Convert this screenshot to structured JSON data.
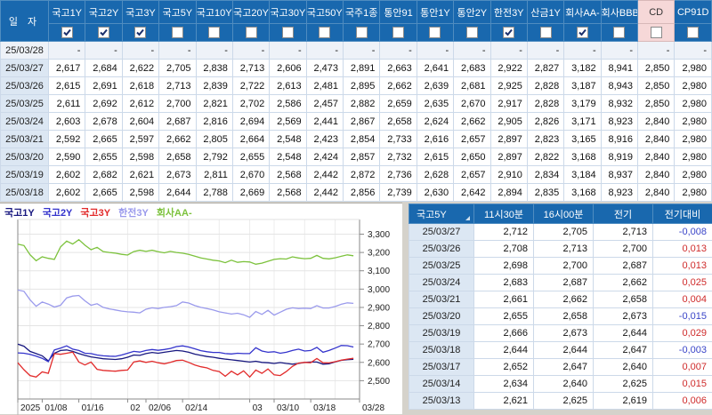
{
  "top_table": {
    "date_header": "일  자",
    "columns": [
      {
        "label": "국고1Y",
        "checked": true
      },
      {
        "label": "국고2Y",
        "checked": true
      },
      {
        "label": "국고3Y",
        "checked": true
      },
      {
        "label": "국고5Y",
        "checked": false
      },
      {
        "label": "국고10Y",
        "checked": false
      },
      {
        "label": "국고20Y",
        "checked": false
      },
      {
        "label": "국고30Y",
        "checked": false
      },
      {
        "label": "국고50Y",
        "checked": false
      },
      {
        "label": "국주1종",
        "checked": false
      },
      {
        "label": "통안91",
        "checked": false
      },
      {
        "label": "통안1Y",
        "checked": false
      },
      {
        "label": "통안2Y",
        "checked": false
      },
      {
        "label": "한전3Y",
        "checked": true
      },
      {
        "label": "산금1Y",
        "checked": false
      },
      {
        "label": "회사AA-",
        "checked": true
      },
      {
        "label": "회사BBB-",
        "checked": false
      },
      {
        "label": "CD",
        "checked": false,
        "highlight": true
      },
      {
        "label": "CP91D",
        "checked": false
      }
    ],
    "rows": [
      {
        "date": "25/03/28",
        "values": [
          "-",
          "-",
          "-",
          "-",
          "-",
          "-",
          "-",
          "-",
          "-",
          "-",
          "-",
          "-",
          "-",
          "-",
          "-",
          "-",
          "-",
          "-"
        ]
      },
      {
        "date": "25/03/27",
        "values": [
          "2,617",
          "2,684",
          "2,622",
          "2,705",
          "2,838",
          "2,713",
          "2,606",
          "2,473",
          "2,891",
          "2,663",
          "2,641",
          "2,683",
          "2,922",
          "2,827",
          "3,182",
          "8,941",
          "2,850",
          "2,980"
        ]
      },
      {
        "date": "25/03/26",
        "values": [
          "2,615",
          "2,691",
          "2,618",
          "2,713",
          "2,839",
          "2,722",
          "2,613",
          "2,481",
          "2,895",
          "2,662",
          "2,639",
          "2,681",
          "2,925",
          "2,828",
          "3,187",
          "8,943",
          "2,850",
          "2,980"
        ]
      },
      {
        "date": "25/03/25",
        "values": [
          "2,611",
          "2,692",
          "2,612",
          "2,700",
          "2,821",
          "2,702",
          "2,586",
          "2,457",
          "2,882",
          "2,659",
          "2,635",
          "2,670",
          "2,917",
          "2,828",
          "3,179",
          "8,932",
          "2,850",
          "2,980"
        ]
      },
      {
        "date": "25/03/24",
        "values": [
          "2,603",
          "2,678",
          "2,604",
          "2,687",
          "2,816",
          "2,694",
          "2,569",
          "2,441",
          "2,867",
          "2,658",
          "2,624",
          "2,662",
          "2,905",
          "2,826",
          "3,171",
          "8,923",
          "2,840",
          "2,980"
        ]
      },
      {
        "date": "25/03/21",
        "values": [
          "2,592",
          "2,665",
          "2,597",
          "2,662",
          "2,805",
          "2,664",
          "2,548",
          "2,423",
          "2,854",
          "2,733",
          "2,616",
          "2,657",
          "2,897",
          "2,823",
          "3,165",
          "8,916",
          "2,840",
          "2,980"
        ]
      },
      {
        "date": "25/03/20",
        "values": [
          "2,590",
          "2,655",
          "2,598",
          "2,658",
          "2,792",
          "2,655",
          "2,548",
          "2,424",
          "2,857",
          "2,732",
          "2,615",
          "2,650",
          "2,897",
          "2,822",
          "3,168",
          "8,919",
          "2,840",
          "2,980"
        ]
      },
      {
        "date": "25/03/19",
        "values": [
          "2,602",
          "2,682",
          "2,621",
          "2,673",
          "2,811",
          "2,670",
          "2,568",
          "2,442",
          "2,872",
          "2,736",
          "2,628",
          "2,657",
          "2,910",
          "2,834",
          "3,184",
          "8,937",
          "2,840",
          "2,980"
        ]
      },
      {
        "date": "25/03/18",
        "values": [
          "2,602",
          "2,665",
          "2,598",
          "2,644",
          "2,788",
          "2,669",
          "2,568",
          "2,442",
          "2,856",
          "2,739",
          "2,630",
          "2,642",
          "2,894",
          "2,835",
          "3,168",
          "8,923",
          "2,840",
          "2,980"
        ]
      }
    ]
  },
  "quote_table": {
    "columns": [
      "국고5Y",
      "11시30분",
      "16시00분",
      "전기",
      "전기대비"
    ],
    "rows": [
      [
        "25/03/27",
        "2,712",
        "2,705",
        "2,713",
        "-0,008"
      ],
      [
        "25/03/26",
        "2,708",
        "2,713",
        "2,700",
        "0,013"
      ],
      [
        "25/03/25",
        "2,698",
        "2,700",
        "2,687",
        "0,013"
      ],
      [
        "25/03/24",
        "2,683",
        "2,687",
        "2,662",
        "0,025"
      ],
      [
        "25/03/21",
        "2,661",
        "2,662",
        "2,658",
        "0,004"
      ],
      [
        "25/03/20",
        "2,655",
        "2,658",
        "2,673",
        "-0,015"
      ],
      [
        "25/03/19",
        "2,666",
        "2,673",
        "2,644",
        "0,029"
      ],
      [
        "25/03/18",
        "2,644",
        "2,644",
        "2,647",
        "-0,003"
      ],
      [
        "25/03/17",
        "2,652",
        "2,647",
        "2,640",
        "0,007"
      ],
      [
        "25/03/14",
        "2,634",
        "2,640",
        "2,625",
        "0,015"
      ],
      [
        "25/03/13",
        "2,621",
        "2,625",
        "2,619",
        "0,006"
      ]
    ],
    "colors": {
      "positive": "#cf2b2b",
      "negative": "#3a45c8"
    }
  },
  "chart": {
    "y_ticks": [
      {
        "v": 2500,
        "label": "2,500"
      },
      {
        "v": 2600,
        "label": "2,600"
      },
      {
        "v": 2700,
        "label": "2,700"
      },
      {
        "v": 2800,
        "label": "2,800"
      },
      {
        "v": 2900,
        "label": "2,900"
      },
      {
        "v": 3000,
        "label": "3,000"
      },
      {
        "v": 3100,
        "label": "3,100"
      },
      {
        "v": 3200,
        "label": "3,200"
      },
      {
        "v": 3300,
        "label": "3,300"
      }
    ],
    "x_ticks": [
      {
        "i": 0,
        "label": "2025"
      },
      {
        "i": 4,
        "label": "01/08"
      },
      {
        "i": 10,
        "label": "01/16"
      },
      {
        "i": 18,
        "label": "02"
      },
      {
        "i": 21,
        "label": "02/06"
      },
      {
        "i": 27,
        "label": "02/14"
      },
      {
        "i": 38,
        "label": "03"
      },
      {
        "i": 42,
        "label": "03/10"
      },
      {
        "i": 48,
        "label": "03/18"
      },
      {
        "i": 56,
        "label": "03/28"
      }
    ],
    "grid_v_indices": [
      2,
      7,
      12,
      18,
      23,
      28,
      33,
      38,
      42,
      47,
      52
    ]
  },
  "chart_data": {
    "type": "line",
    "title": "",
    "ylabel": "",
    "xlabel": "",
    "ylim": [
      2400,
      3380
    ],
    "grid": true,
    "legend_position": "top-left",
    "x": [
      "01/02",
      "01/03",
      "01/06",
      "01/07",
      "01/08",
      "01/09",
      "01/10",
      "01/13",
      "01/14",
      "01/15",
      "01/16",
      "01/17",
      "01/20",
      "01/21",
      "01/22",
      "01/23",
      "01/24",
      "01/31",
      "02/03",
      "02/04",
      "02/05",
      "02/06",
      "02/07",
      "02/10",
      "02/11",
      "02/12",
      "02/13",
      "02/14",
      "02/17",
      "02/18",
      "02/19",
      "02/20",
      "02/21",
      "02/24",
      "02/25",
      "02/26",
      "02/27",
      "02/28",
      "03/04",
      "03/05",
      "03/06",
      "03/07",
      "03/10",
      "03/11",
      "03/12",
      "03/13",
      "03/14",
      "03/17",
      "03/18",
      "03/19",
      "03/20",
      "03/21",
      "03/24",
      "03/25",
      "03/26",
      "03/27"
    ],
    "x_axis_end": "03/28",
    "series": [
      {
        "name": "국고1Y",
        "color": "#17177f",
        "values": [
          2700,
          2688,
          2660,
          2648,
          2636,
          2608,
          2650,
          2665,
          2668,
          2660,
          2648,
          2638,
          2630,
          2625,
          2620,
          2618,
          2616,
          2620,
          2628,
          2640,
          2638,
          2648,
          2654,
          2650,
          2655,
          2660,
          2665,
          2662,
          2655,
          2645,
          2638,
          2632,
          2628,
          2622,
          2618,
          2614,
          2610,
          2606,
          2602,
          2606,
          2600,
          2598,
          2594,
          2599,
          2594,
          2590,
          2594,
          2600,
          2602,
          2602,
          2590,
          2592,
          2603,
          2611,
          2615,
          2617
        ]
      },
      {
        "name": "국고2Y",
        "color": "#3333cc",
        "values": [
          2652,
          2650,
          2644,
          2634,
          2622,
          2604,
          2668,
          2678,
          2690,
          2672,
          2665,
          2650,
          2648,
          2640,
          2636,
          2634,
          2633,
          2640,
          2650,
          2660,
          2656,
          2665,
          2670,
          2666,
          2670,
          2676,
          2686,
          2690,
          2684,
          2674,
          2664,
          2658,
          2654,
          2654,
          2648,
          2646,
          2650,
          2648,
          2648,
          2680,
          2662,
          2655,
          2658,
          2650,
          2655,
          2665,
          2672,
          2662,
          2665,
          2682,
          2655,
          2665,
          2678,
          2692,
          2691,
          2684
        ]
      },
      {
        "name": "국고3Y",
        "color": "#e22b2b",
        "values": [
          2598,
          2560,
          2528,
          2520,
          2548,
          2540,
          2648,
          2644,
          2650,
          2656,
          2602,
          2586,
          2602,
          2562,
          2556,
          2554,
          2552,
          2556,
          2558,
          2602,
          2608,
          2600,
          2606,
          2598,
          2592,
          2600,
          2610,
          2612,
          2600,
          2586,
          2576,
          2570,
          2556,
          2550,
          2524,
          2552,
          2532,
          2554,
          2520,
          2558,
          2540,
          2564,
          2532,
          2528,
          2550,
          2578,
          2596,
          2600,
          2598,
          2621,
          2598,
          2597,
          2604,
          2612,
          2618,
          2622
        ]
      },
      {
        "name": "한전3Y",
        "color": "#9a9aec",
        "values": [
          2995,
          2988,
          2942,
          2906,
          2930,
          2918,
          2902,
          2912,
          2952,
          2962,
          2965,
          2936,
          2912,
          2920,
          2900,
          2892,
          2886,
          2880,
          2876,
          2874,
          2870,
          2890,
          2898,
          2894,
          2900,
          2904,
          2910,
          2930,
          2924,
          2910,
          2900,
          2894,
          2886,
          2876,
          2870,
          2864,
          2868,
          2860,
          2846,
          2878,
          2862,
          2884,
          2858,
          2874,
          2890,
          2898,
          2894,
          2896,
          2894,
          2910,
          2897,
          2897,
          2905,
          2917,
          2925,
          2922
        ]
      },
      {
        "name": "회사AA-",
        "color": "#7cc23c",
        "values": [
          3245,
          3238,
          3188,
          3155,
          3176,
          3168,
          3162,
          3230,
          3262,
          3246,
          3270,
          3240,
          3215,
          3228,
          3205,
          3200,
          3196,
          3190,
          3186,
          3205,
          3212,
          3206,
          3212,
          3204,
          3198,
          3206,
          3200,
          3196,
          3190,
          3180,
          3170,
          3164,
          3158,
          3154,
          3144,
          3158,
          3146,
          3150,
          3148,
          3136,
          3142,
          3152,
          3162,
          3166,
          3164,
          3176,
          3170,
          3166,
          3168,
          3184,
          3168,
          3165,
          3171,
          3179,
          3187,
          3182
        ]
      }
    ]
  }
}
